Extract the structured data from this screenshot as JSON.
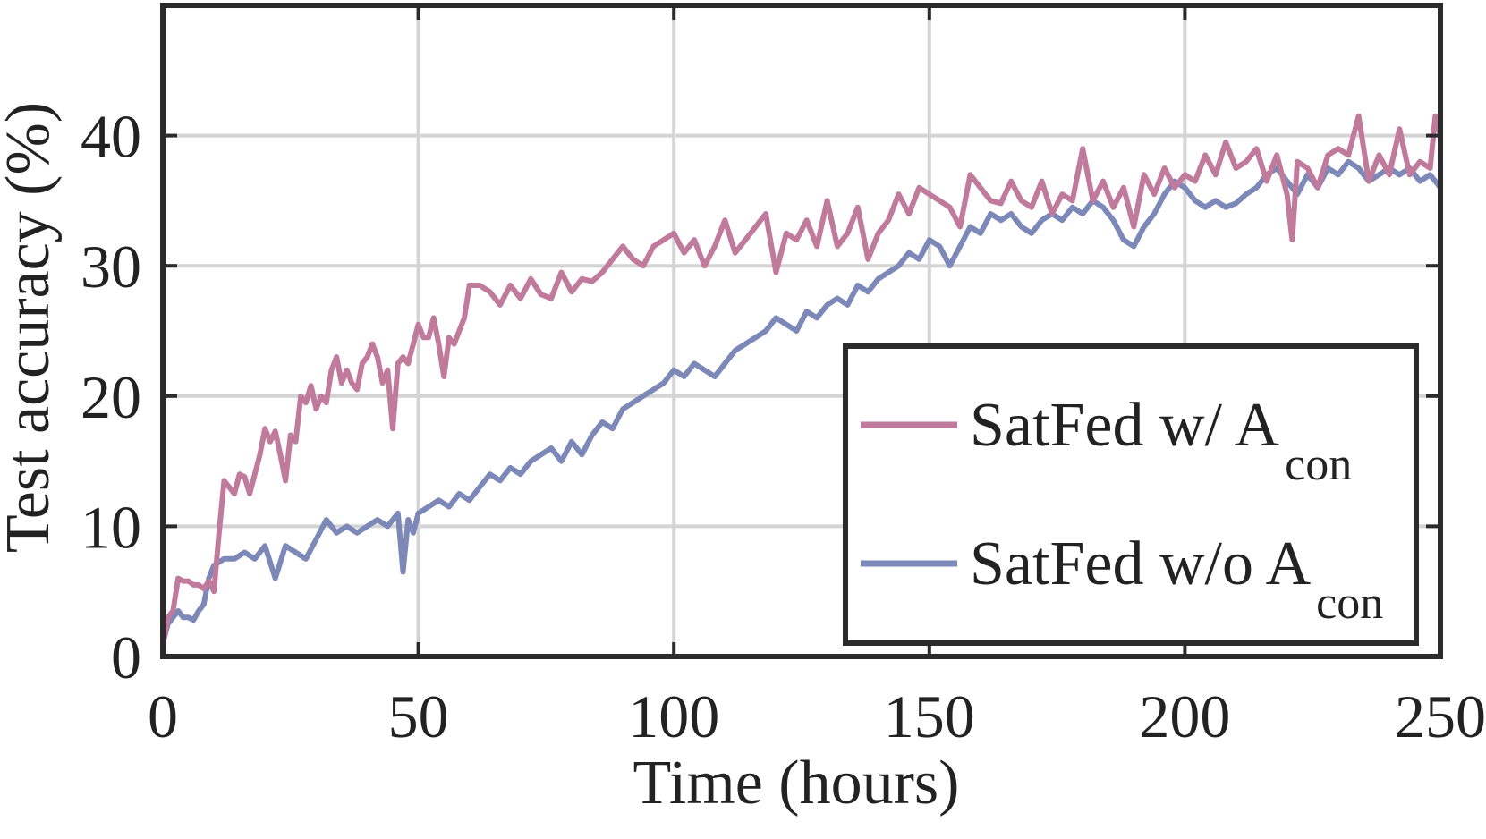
{
  "chart_data": {
    "type": "line",
    "title": "",
    "xlabel": "Time (hours)",
    "ylabel": "Test accuracy (%)",
    "xlim": [
      0,
      250
    ],
    "ylim": [
      0,
      50
    ],
    "xticks": [
      0,
      50,
      100,
      150,
      200,
      250
    ],
    "yticks": [
      0,
      10,
      20,
      30,
      40
    ],
    "grid": true,
    "legend": {
      "position": "bottom-right"
    },
    "series": [
      {
        "name": "SatFed w/ A",
        "name_sub": "con",
        "color": "#c07a9c",
        "x": [
          0,
          1,
          2,
          3,
          4,
          5,
          6,
          7,
          8,
          9,
          10,
          11,
          12,
          13,
          14,
          15,
          16,
          17,
          18,
          19,
          20,
          21,
          22,
          23,
          24,
          25,
          26,
          27,
          28,
          29,
          30,
          31,
          32,
          33,
          34,
          35,
          36,
          37,
          38,
          39,
          40,
          41,
          42,
          43,
          44,
          45,
          46,
          47,
          48,
          49,
          50,
          51,
          52,
          53,
          54,
          55,
          56,
          57,
          58,
          59,
          60,
          62,
          64,
          66,
          68,
          70,
          72,
          74,
          76,
          78,
          80,
          82,
          84,
          86,
          88,
          90,
          92,
          94,
          96,
          98,
          100,
          102,
          104,
          106,
          108,
          110,
          112,
          114,
          116,
          118,
          120,
          122,
          124,
          126,
          128,
          130,
          132,
          134,
          136,
          138,
          140,
          142,
          144,
          146,
          148,
          150,
          152,
          154,
          156,
          158,
          160,
          162,
          164,
          166,
          168,
          170,
          172,
          174,
          176,
          178,
          180,
          182,
          184,
          186,
          188,
          190,
          192,
          194,
          196,
          198,
          200,
          202,
          204,
          206,
          208,
          210,
          212,
          214,
          216,
          218,
          220,
          221,
          222,
          224,
          226,
          228,
          230,
          232,
          234,
          235,
          236,
          238,
          240,
          242,
          244,
          246,
          248,
          249,
          250
        ],
        "y": [
          1.0,
          3.0,
          3.5,
          6.0,
          5.8,
          5.8,
          5.5,
          5.5,
          5.2,
          5.8,
          5.0,
          9.5,
          13.5,
          13.0,
          12.5,
          14.0,
          13.8,
          12.5,
          14.0,
          15.5,
          17.5,
          16.5,
          17.3,
          15.5,
          13.5,
          17.0,
          16.5,
          20.0,
          19.5,
          20.8,
          19.0,
          20.0,
          19.5,
          22.0,
          23.0,
          21.0,
          22.0,
          21.0,
          20.5,
          22.5,
          23.0,
          24.0,
          23.0,
          21.0,
          22.0,
          17.5,
          22.5,
          23.0,
          22.5,
          24.0,
          25.5,
          24.5,
          24.5,
          26.0,
          24.0,
          21.5,
          24.5,
          24.0,
          25.0,
          26.0,
          28.5,
          28.5,
          28.0,
          27.0,
          28.5,
          27.5,
          29.0,
          27.8,
          27.5,
          29.5,
          28.0,
          29.0,
          28.8,
          29.5,
          30.5,
          31.5,
          30.5,
          30.0,
          31.5,
          32.0,
          32.5,
          31.0,
          32.0,
          30.0,
          31.5,
          33.5,
          31.0,
          32.0,
          33.0,
          34.0,
          29.5,
          32.5,
          32.0,
          33.5,
          31.5,
          35.0,
          31.5,
          32.5,
          34.5,
          30.5,
          32.5,
          33.5,
          35.5,
          34.0,
          36.0,
          35.5,
          35.0,
          34.5,
          33.0,
          37.0,
          36.0,
          35.0,
          34.8,
          36.5,
          35.0,
          34.5,
          36.5,
          34.0,
          35.5,
          35.0,
          39.0,
          35.0,
          36.5,
          34.5,
          36.0,
          33.0,
          37.0,
          35.5,
          37.5,
          36.0,
          37.0,
          36.5,
          38.5,
          37.0,
          39.5,
          37.5,
          38.0,
          39.0,
          36.5,
          38.5,
          35.5,
          32.0,
          38.0,
          37.5,
          36.0,
          38.5,
          39.0,
          38.5,
          41.5,
          39.0,
          36.5,
          38.5,
          37.0,
          40.5,
          37.0,
          38.0,
          37.5,
          41.5,
          40.0
        ]
      },
      {
        "name": "SatFed w/o A",
        "name_sub": "con",
        "color": "#7b88b8",
        "x": [
          0,
          1,
          2,
          3,
          4,
          5,
          6,
          7,
          8,
          9,
          10,
          12,
          14,
          16,
          18,
          20,
          22,
          24,
          26,
          28,
          30,
          32,
          34,
          36,
          38,
          40,
          42,
          44,
          46,
          47,
          48,
          49,
          50,
          52,
          54,
          56,
          58,
          60,
          62,
          64,
          66,
          68,
          70,
          72,
          74,
          76,
          78,
          80,
          82,
          84,
          86,
          88,
          90,
          92,
          94,
          96,
          98,
          100,
          102,
          104,
          106,
          108,
          110,
          112,
          114,
          116,
          118,
          120,
          122,
          124,
          126,
          128,
          130,
          132,
          134,
          136,
          138,
          140,
          142,
          144,
          146,
          148,
          150,
          152,
          154,
          156,
          158,
          160,
          162,
          164,
          166,
          168,
          170,
          172,
          174,
          176,
          178,
          180,
          182,
          184,
          186,
          188,
          190,
          192,
          194,
          196,
          198,
          200,
          202,
          204,
          206,
          208,
          210,
          212,
          214,
          216,
          218,
          220,
          222,
          224,
          226,
          228,
          230,
          232,
          234,
          236,
          238,
          240,
          242,
          244,
          246,
          248,
          250
        ],
        "y": [
          1.0,
          2.5,
          3.0,
          3.5,
          3.0,
          3.0,
          2.8,
          3.5,
          4.0,
          6.0,
          7.0,
          7.5,
          7.5,
          8.0,
          7.5,
          8.5,
          6.0,
          8.5,
          8.0,
          7.5,
          9.0,
          10.5,
          9.5,
          10.0,
          9.5,
          10.0,
          10.5,
          10.0,
          11.0,
          6.5,
          10.5,
          9.5,
          11.0,
          11.5,
          12.0,
          11.5,
          12.5,
          12.0,
          13.0,
          14.0,
          13.5,
          14.5,
          14.0,
          15.0,
          15.5,
          16.0,
          15.0,
          16.5,
          15.5,
          17.0,
          18.0,
          17.5,
          19.0,
          19.5,
          20.0,
          20.5,
          21.0,
          22.0,
          21.5,
          22.5,
          22.0,
          21.5,
          22.5,
          23.5,
          24.0,
          24.5,
          25.0,
          26.0,
          25.5,
          25.0,
          26.5,
          26.0,
          27.0,
          27.5,
          27.0,
          28.5,
          28.0,
          29.0,
          29.5,
          30.0,
          31.0,
          30.5,
          32.0,
          31.5,
          30.0,
          31.5,
          33.0,
          32.5,
          34.0,
          33.5,
          34.0,
          33.0,
          32.5,
          33.5,
          34.0,
          33.5,
          34.5,
          34.0,
          35.0,
          34.5,
          33.5,
          32.0,
          31.5,
          33.0,
          34.0,
          35.5,
          36.5,
          36.0,
          35.0,
          34.5,
          35.0,
          34.5,
          34.8,
          35.5,
          36.0,
          37.0,
          37.5,
          36.5,
          35.5,
          37.0,
          36.0,
          37.5,
          37.0,
          38.0,
          37.5,
          36.5,
          37.0,
          37.5,
          37.0,
          37.5,
          36.5,
          37.0,
          36.0
        ]
      }
    ]
  }
}
